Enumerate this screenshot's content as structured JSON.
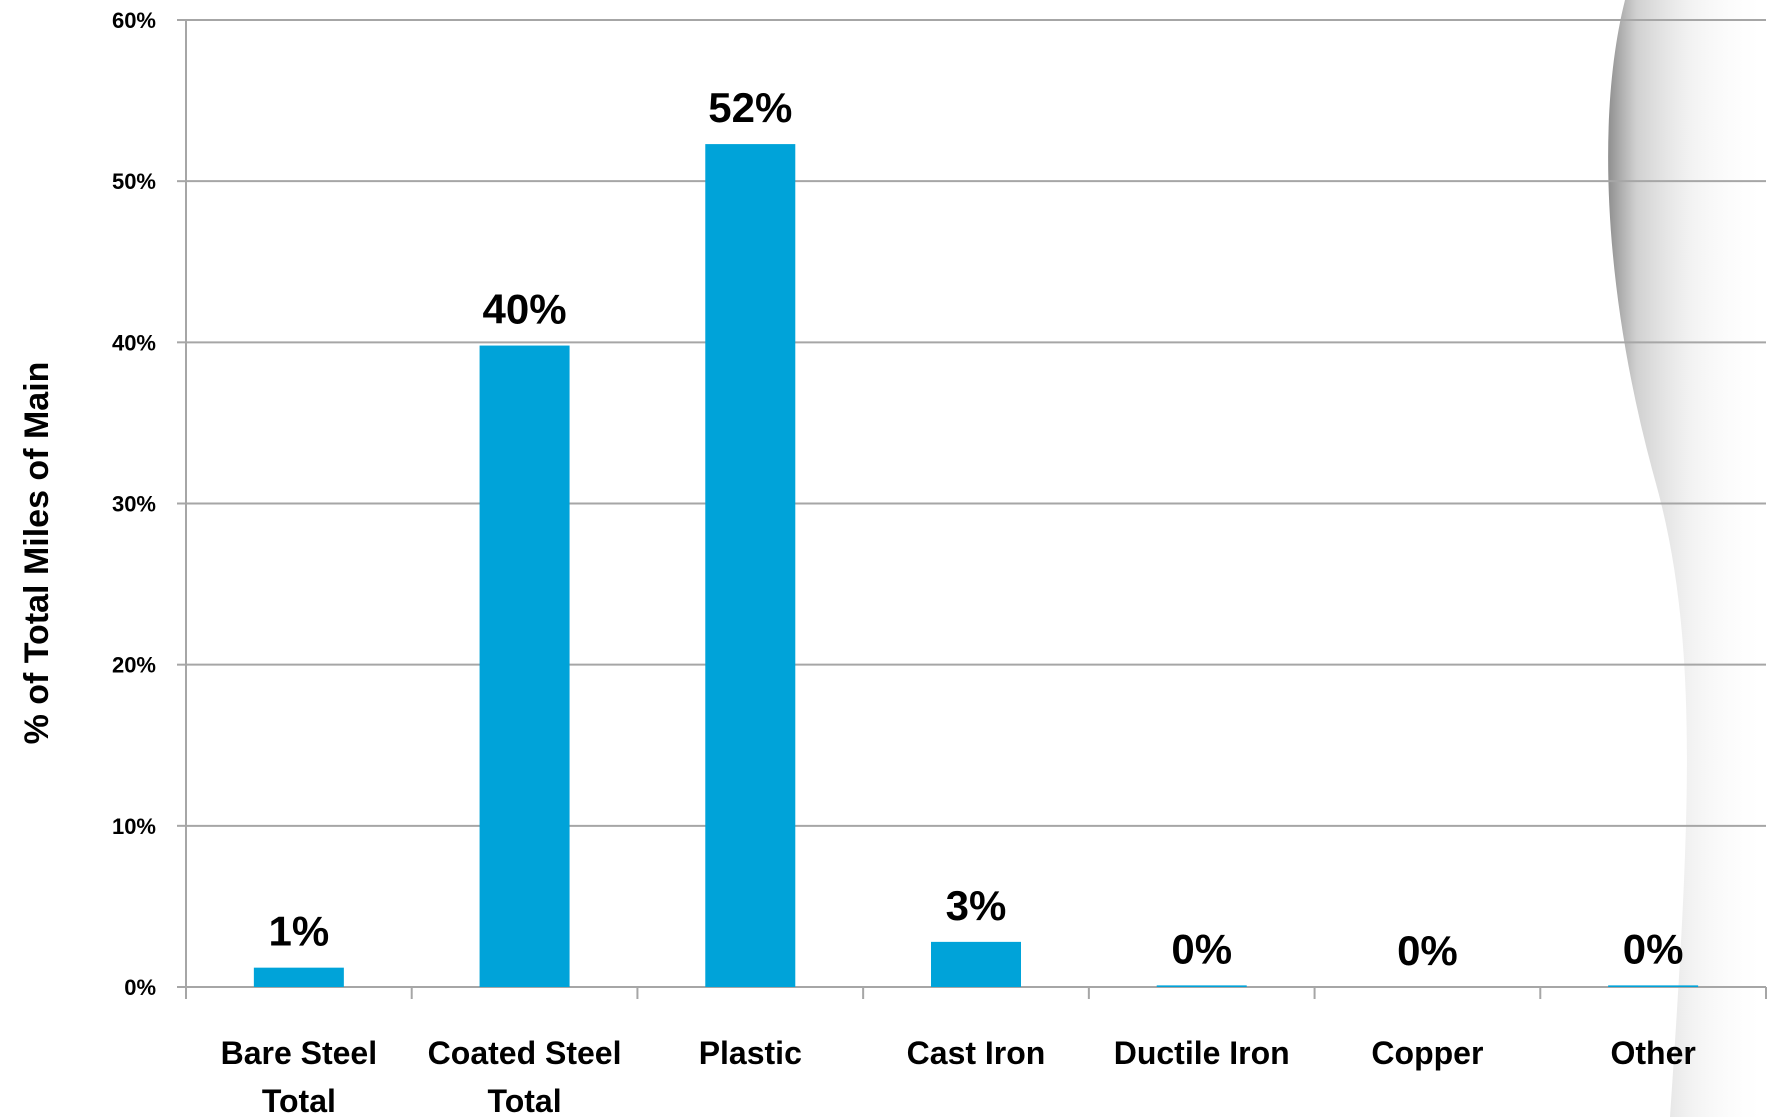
{
  "chart_data": {
    "type": "bar",
    "categories": [
      [
        "Bare Steel",
        "Total"
      ],
      [
        "Coated Steel",
        "Total"
      ],
      [
        "Plastic"
      ],
      [
        "Cast Iron"
      ],
      [
        "Ductile Iron"
      ],
      [
        "Copper"
      ],
      [
        "Other"
      ]
    ],
    "values": [
      1.2,
      39.8,
      52.3,
      2.8,
      0.1,
      0.0,
      0.1
    ],
    "data_labels": [
      "1%",
      "40%",
      "52%",
      "3%",
      "0%",
      "0%",
      "0%"
    ],
    "ylabel": "% of Total Miles of Main",
    "ylim": [
      0,
      60
    ],
    "yticks": [
      0,
      10,
      20,
      30,
      40,
      50,
      60
    ],
    "ytick_labels": [
      "0%",
      "10%",
      "20%",
      "30%",
      "40%",
      "50%",
      "60%"
    ],
    "grid": true,
    "legend": false,
    "bar_color": "#00A3D9",
    "gridline_color": "#A6A6A6"
  }
}
